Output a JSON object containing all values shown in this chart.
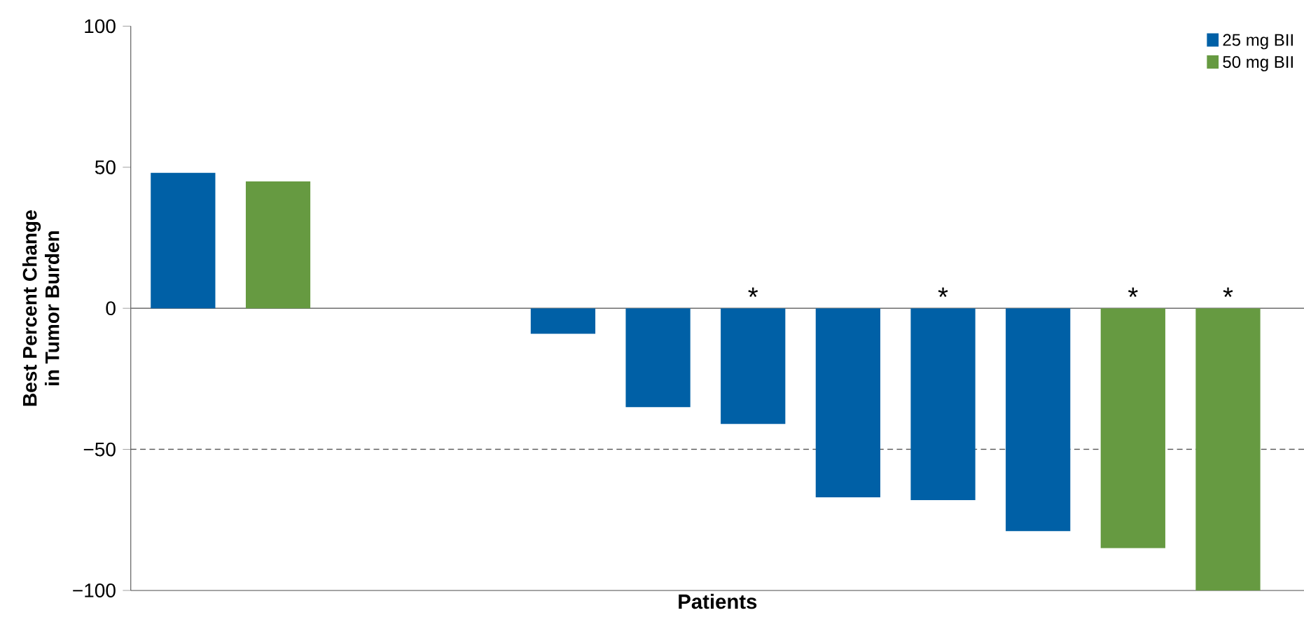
{
  "chart_data": {
    "type": "bar",
    "xlabel": "Patients",
    "ylabel": "Best Percent Change\nin Tumor Burden",
    "categories": [
      null,
      null,
      null,
      null,
      null,
      null,
      null,
      null,
      null,
      null,
      null,
      null
    ],
    "series": [
      {
        "name": "25 mg BII",
        "color": "#0060a6",
        "values": [
          48,
          null,
          null,
          null,
          -9,
          -35,
          -41,
          -67,
          -68,
          -79,
          null,
          null
        ],
        "value_labels": [
          null,
          null,
          null,
          null,
          null,
          null,
          "*",
          null,
          "*",
          null,
          null,
          null
        ]
      },
      {
        "name": "50 mg BII",
        "color": "#669a41",
        "values": [
          null,
          45,
          null,
          null,
          null,
          null,
          null,
          null,
          null,
          null,
          -85,
          -100
        ],
        "value_labels": [
          null,
          null,
          null,
          null,
          null,
          null,
          null,
          null,
          null,
          null,
          "*",
          "*"
        ]
      }
    ],
    "ylim": [
      -100,
      100
    ],
    "yticks": [
      {
        "value": -100,
        "label": "−100"
      },
      {
        "value": -50,
        "label": "−50"
      },
      0,
      50,
      100
    ],
    "ref_lines": [
      {
        "axis": "y",
        "value": 0,
        "color": "#808080",
        "line_style": "solid"
      },
      {
        "axis": "y",
        "value": -50,
        "color": "#555555",
        "line_style": "dashed"
      }
    ],
    "grid": false,
    "legend": "top right"
  }
}
